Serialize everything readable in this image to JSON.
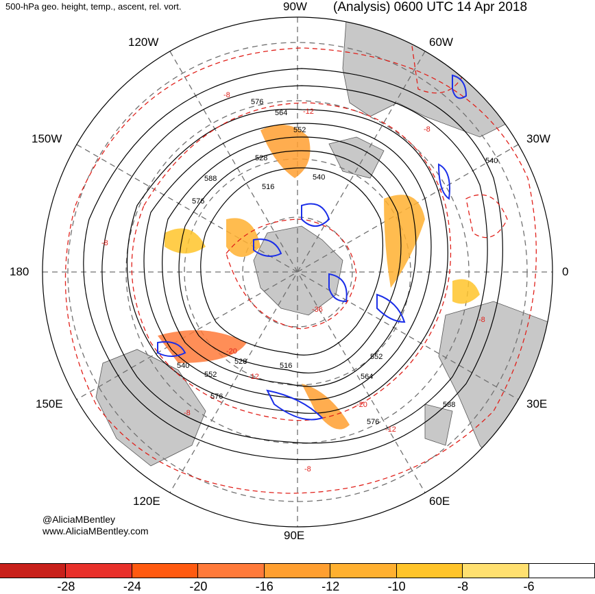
{
  "title": {
    "left": "500-hPa geo. height, temp., ascent, rel. vort.",
    "right": "(Analysis) 0600 UTC 14 Apr 2018"
  },
  "longitude_labels": [
    {
      "id": "90w",
      "text": "90W"
    },
    {
      "id": "120w",
      "text": "120W"
    },
    {
      "id": "60w",
      "text": "60W"
    },
    {
      "id": "150w",
      "text": "150W"
    },
    {
      "id": "30w",
      "text": "30W"
    },
    {
      "id": "180",
      "text": "180"
    },
    {
      "id": "0",
      "text": "0"
    },
    {
      "id": "150e",
      "text": "150E"
    },
    {
      "id": "30e",
      "text": "30E"
    },
    {
      "id": "120e",
      "text": "120E"
    },
    {
      "id": "60e",
      "text": "60E"
    },
    {
      "id": "90e",
      "text": "90E"
    }
  ],
  "height_contour_labels": [
    "576",
    "564",
    "552",
    "528",
    "540",
    "588",
    "516",
    "576",
    "540",
    "528",
    "552",
    "516",
    "576",
    "552",
    "564",
    "588",
    "576",
    "540"
  ],
  "temperature_contour_labels": [
    "-8",
    "-12",
    "-8",
    "-36",
    "-20",
    "-12",
    "-8",
    "-8",
    "-8",
    "-12",
    "-20",
    "-8"
  ],
  "credit": {
    "handle": "@AliciaMBentley",
    "site": "www.AliciaMBentley.com"
  },
  "colorbar": {
    "colors": [
      "#c8201a",
      "#e8302a",
      "#ff5a10",
      "#ff7a3a",
      "#ff9f30",
      "#ffb030",
      "#ffc42a",
      "#ffe070",
      "#ffffff"
    ],
    "ticks": [
      "-28",
      "-24",
      "-20",
      "-16",
      "-12",
      "-10",
      "-8",
      "-6"
    ]
  },
  "colors": {
    "height_contour": "#000000",
    "temperature_contour": "#e0201a",
    "vorticity": "#1a2ee8",
    "land": "#c8c8c8",
    "grid": "#707070"
  }
}
